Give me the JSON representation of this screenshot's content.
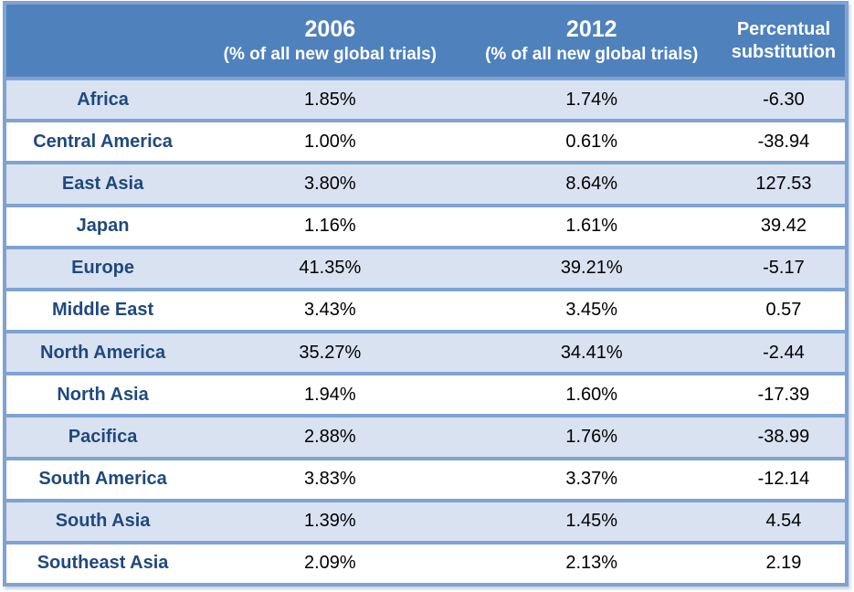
{
  "colors": {
    "header_bg": "#4F81BD",
    "banded_row_bg": "#D9E2F1",
    "plain_row_bg": "#FFFFFF",
    "border_blue": "#7EA3D2",
    "header_text": "#FFFFFF",
    "region_text": "#1F497D",
    "value_text": "#000000"
  },
  "header": {
    "region_label": "",
    "col_2006": {
      "line1": "2006",
      "line2": "(% of all new global trials)"
    },
    "col_2012": {
      "line1": "2012",
      "line2": "(% of all new global trials)"
    },
    "col_substitution": {
      "line1": "Percentual",
      "line2": "substitution"
    }
  },
  "rows": [
    {
      "region": "Africa",
      "v2006": "1.85%",
      "v2012": "1.74%",
      "substitution": "-6.30"
    },
    {
      "region": "Central America",
      "v2006": "1.00%",
      "v2012": "0.61%",
      "substitution": "-38.94"
    },
    {
      "region": "East Asia",
      "v2006": "3.80%",
      "v2012": "8.64%",
      "substitution": "127.53"
    },
    {
      "region": "Japan",
      "v2006": "1.16%",
      "v2012": "1.61%",
      "substitution": "39.42"
    },
    {
      "region": "Europe",
      "v2006": "41.35%",
      "v2012": "39.21%",
      "substitution": "-5.17"
    },
    {
      "region": "Middle East",
      "v2006": "3.43%",
      "v2012": "3.45%",
      "substitution": "0.57"
    },
    {
      "region": "North America",
      "v2006": "35.27%",
      "v2012": "34.41%",
      "substitution": "-2.44"
    },
    {
      "region": "North Asia",
      "v2006": "1.94%",
      "v2012": "1.60%",
      "substitution": "-17.39"
    },
    {
      "region": "Pacifica",
      "v2006": "2.88%",
      "v2012": "1.76%",
      "substitution": "-38.99"
    },
    {
      "region": "South America",
      "v2006": "3.83%",
      "v2012": "3.37%",
      "substitution": "-12.14"
    },
    {
      "region": "South Asia",
      "v2006": "1.39%",
      "v2012": "1.45%",
      "substitution": "4.54"
    },
    {
      "region": "Southeast Asia",
      "v2006": "2.09%",
      "v2012": "2.13%",
      "substitution": "2.19"
    }
  ],
  "chart_data": {
    "type": "table",
    "columns": [
      "",
      "2006 (% of all new global trials)",
      "2012 (% of all new global trials)",
      "Percentual substitution"
    ],
    "rows": [
      [
        "Africa",
        "1.85%",
        "1.74%",
        "-6.30"
      ],
      [
        "Central America",
        "1.00%",
        "0.61%",
        "-38.94"
      ],
      [
        "East Asia",
        "3.80%",
        "8.64%",
        "127.53"
      ],
      [
        "Japan",
        "1.16%",
        "1.61%",
        "39.42"
      ],
      [
        "Europe",
        "41.35%",
        "39.21%",
        "-5.17"
      ],
      [
        "Middle East",
        "3.43%",
        "3.45%",
        "0.57"
      ],
      [
        "North America",
        "35.27%",
        "34.41%",
        "-2.44"
      ],
      [
        "North Asia",
        "1.94%",
        "1.60%",
        "-17.39"
      ],
      [
        "Pacifica",
        "2.88%",
        "1.76%",
        "-38.99"
      ],
      [
        "South America",
        "3.83%",
        "3.37%",
        "-12.14"
      ],
      [
        "South Asia",
        "1.39%",
        "1.45%",
        "4.54"
      ],
      [
        "Southeast Asia",
        "2.09%",
        "2.13%",
        "2.19"
      ]
    ],
    "banded_rows": [
      "Africa",
      "East Asia",
      "Europe",
      "North America",
      "Pacifica",
      "South Asia"
    ],
    "legend_position": "none",
    "grid": "horizontal-borders-only"
  }
}
